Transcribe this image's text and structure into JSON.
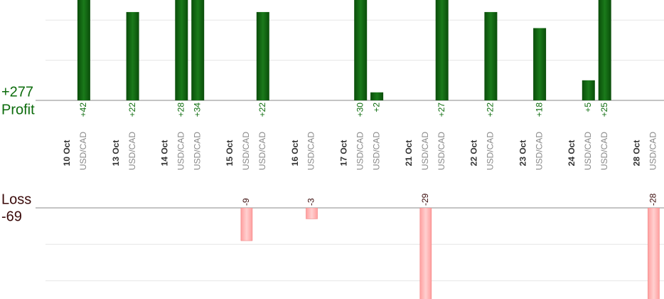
{
  "chart_data": {
    "type": "bar",
    "profit_total": "+277",
    "profit_label": "Profit",
    "loss_label": "Loss",
    "loss_total": "-69",
    "profit_axis": {
      "ylim": [
        0,
        25
      ],
      "yticks": [
        0,
        10,
        20
      ],
      "color": "#0b6b0b"
    },
    "loss_axis": {
      "ylim": [
        0,
        -25
      ],
      "yticks": [
        0,
        -10,
        -20
      ],
      "color": "#ffb0b0"
    },
    "days": [
      {
        "date": "10 Oct",
        "trades": [
          {
            "pair": "USD/CAD",
            "value": 42,
            "value_label": "+42"
          }
        ]
      },
      {
        "date": "13 Oct",
        "trades": [
          {
            "pair": "USD/CAD",
            "value": 22,
            "value_label": "+22"
          }
        ]
      },
      {
        "date": "14 Oct",
        "trades": [
          {
            "pair": "USD/CAD",
            "value": 28,
            "value_label": "+28"
          },
          {
            "pair": "USD/CAD",
            "value": 34,
            "value_label": "+34"
          }
        ]
      },
      {
        "date": "15 Oct",
        "trades": [
          {
            "pair": "USD/CAD",
            "value": -9
          },
          {
            "pair": "USD/CAD",
            "value": 22,
            "value_label": "+22"
          }
        ]
      },
      {
        "date": "16 Oct",
        "trades": [
          {
            "pair": "USD/CAD",
            "value": -3
          }
        ]
      },
      {
        "date": "17 Oct",
        "trades": [
          {
            "pair": "USD/CAD",
            "value": 30,
            "value_label": "+30"
          },
          {
            "pair": "USD/CAD",
            "value": 2,
            "value_label": "+2"
          }
        ]
      },
      {
        "date": "21 Oct",
        "trades": [
          {
            "pair": "USD/CAD",
            "value": -29
          },
          {
            "pair": "USD/CAD",
            "value": 27,
            "value_label": "+27"
          }
        ]
      },
      {
        "date": "22 Oct",
        "trades": [
          {
            "pair": "USD/CAD",
            "value": 22,
            "value_label": "+22"
          }
        ]
      },
      {
        "date": "23 Oct",
        "trades": [
          {
            "pair": "USD/CAD",
            "value": 18,
            "value_label": "+18"
          }
        ]
      },
      {
        "date": "24 Oct",
        "trades": [
          {
            "pair": "USD/CAD",
            "value": 5,
            "value_label": "+5"
          },
          {
            "pair": "USD/CAD",
            "value": 25,
            "value_label": "+25"
          }
        ]
      },
      {
        "date": "28 Oct",
        "trades": [
          {
            "pair": "USD/CAD",
            "value": -28
          }
        ]
      }
    ]
  }
}
